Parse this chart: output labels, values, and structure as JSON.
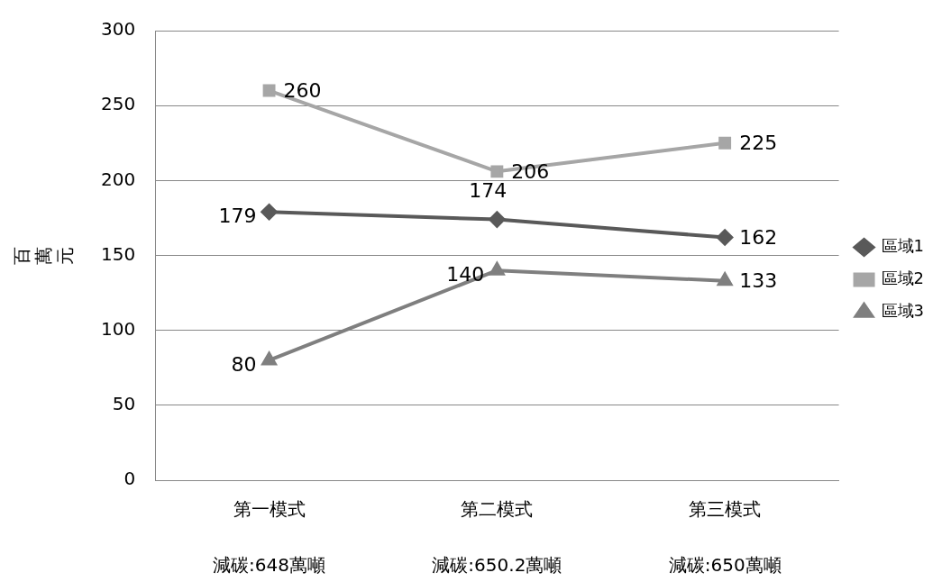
{
  "chart_data": {
    "type": "line",
    "ylabel": "百萬元",
    "categories": [
      "第一模式",
      "第二模式",
      "第三模式"
    ],
    "annotations": [
      "減碳:648萬噸",
      "減碳:650.2萬噸",
      "減碳:650萬噸"
    ],
    "series": [
      {
        "name": "區域1",
        "color": "#595959",
        "marker": "diamond",
        "values": [
          179,
          174,
          162
        ]
      },
      {
        "name": "區域2",
        "color": "#a6a6a6",
        "marker": "square",
        "values": [
          260,
          206,
          225
        ]
      },
      {
        "name": "區域3",
        "color": "#7f7f7f",
        "marker": "triangle",
        "values": [
          80,
          140,
          133
        ]
      }
    ],
    "ylim": [
      0,
      300
    ],
    "yticks": [
      0,
      50,
      100,
      150,
      200,
      250,
      300
    ],
    "grid": "y",
    "legend": "right",
    "data_labels": true
  }
}
